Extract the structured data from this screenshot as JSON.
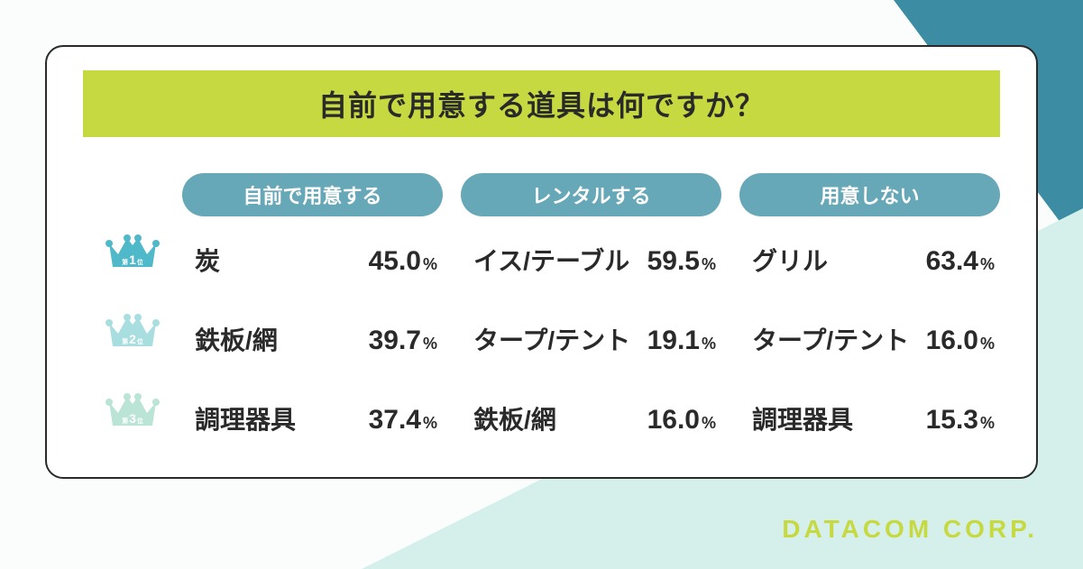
{
  "title": "自前で用意する道具は何ですか？",
  "footer_logo": "DATACOM CORP.",
  "colors": {
    "accent": "#c7d940",
    "pill": "#66a8b7",
    "text": "#2a2a2a",
    "bg_white": "#fbfdfd",
    "bg_teal": "#3c8ca3",
    "bg_mint": "#d5f0ea",
    "card_bg": "#ffffff",
    "card_border": "#2a2a2a"
  },
  "ranks": [
    {
      "prefix": "第",
      "num": "1",
      "suffix": "位",
      "crown_color": "#4fb8c9"
    },
    {
      "prefix": "第",
      "num": "2",
      "suffix": "位",
      "crown_color": "#a9dee0"
    },
    {
      "prefix": "第",
      "num": "3",
      "suffix": "位",
      "crown_color": "#b9e4d6"
    }
  ],
  "columns": [
    {
      "header": "自前で用意する",
      "rows": [
        {
          "name": "炭",
          "value": "45.0",
          "unit": "%"
        },
        {
          "name": "鉄板/網",
          "value": "39.7",
          "unit": "%"
        },
        {
          "name": "調理器具",
          "value": "37.4",
          "unit": "%"
        }
      ]
    },
    {
      "header": "レンタルする",
      "rows": [
        {
          "name": "イス/テーブル",
          "value": "59.5",
          "unit": "%"
        },
        {
          "name": "タープ/テント",
          "value": "19.1",
          "unit": "%"
        },
        {
          "name": "鉄板/網",
          "value": "16.0",
          "unit": "%"
        }
      ]
    },
    {
      "header": "用意しない",
      "rows": [
        {
          "name": "グリル",
          "value": "63.4",
          "unit": "%"
        },
        {
          "name": "タープ/テント",
          "value": "16.0",
          "unit": "%"
        },
        {
          "name": "調理器具",
          "value": "15.3",
          "unit": "%"
        }
      ]
    }
  ]
}
